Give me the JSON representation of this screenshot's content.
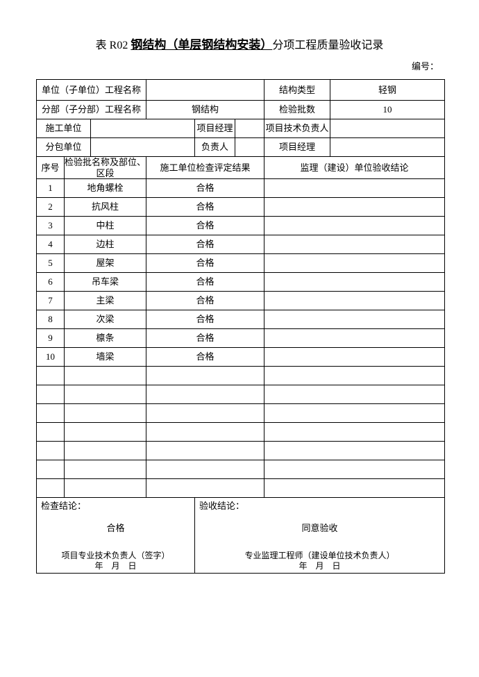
{
  "title": {
    "prefix": "表 R02 ",
    "bold": "钢结构（单层钢结构安装）",
    "suffix": "分项工程质量验收记录"
  },
  "serial_label": "编号：",
  "header": {
    "unit_name_label": "单位（子单位）工程名称",
    "unit_name_value": "",
    "struct_type_label": "结构类型",
    "struct_type_value": "轻钢",
    "sub_name_label": "分部（子分部）工程名称",
    "sub_name_value": "钢结构",
    "batch_count_label": "检验批数",
    "batch_count_value": "10",
    "construct_unit_label": "施工单位",
    "construct_unit_value": "",
    "pm_label": "项目经理",
    "pm_value": "",
    "tech_lead_label": "项目技术负责人",
    "tech_lead_value": "",
    "subcon_label": "分包单位",
    "subcon_value": "",
    "resp_label": "负责人",
    "resp_value": "",
    "sub_pm_label": "项目经理",
    "sub_pm_value": ""
  },
  "columns": {
    "seq": "序号",
    "name": "检验批名称及部位、区段",
    "result": "施工单位检查评定结果",
    "conclusion": "监理（建设）单位验收结论"
  },
  "rows": [
    {
      "seq": "1",
      "name": "地角螺栓",
      "result": "合格",
      "conclusion": ""
    },
    {
      "seq": "2",
      "name": "抗风柱",
      "result": "合格",
      "conclusion": ""
    },
    {
      "seq": "3",
      "name": "中柱",
      "result": "合格",
      "conclusion": ""
    },
    {
      "seq": "4",
      "name": "边柱",
      "result": "合格",
      "conclusion": ""
    },
    {
      "seq": "5",
      "name": "屋架",
      "result": "合格",
      "conclusion": ""
    },
    {
      "seq": "6",
      "name": "吊车梁",
      "result": "合格",
      "conclusion": ""
    },
    {
      "seq": "7",
      "name": "主梁",
      "result": "合格",
      "conclusion": ""
    },
    {
      "seq": "8",
      "name": "次梁",
      "result": "合格",
      "conclusion": ""
    },
    {
      "seq": "9",
      "name": "檩条",
      "result": "合格",
      "conclusion": ""
    },
    {
      "seq": "10",
      "name": "墙梁",
      "result": "合格",
      "conclusion": ""
    },
    {
      "seq": "",
      "name": "",
      "result": "",
      "conclusion": ""
    },
    {
      "seq": "",
      "name": "",
      "result": "",
      "conclusion": ""
    },
    {
      "seq": "",
      "name": "",
      "result": "",
      "conclusion": ""
    },
    {
      "seq": "",
      "name": "",
      "result": "",
      "conclusion": ""
    },
    {
      "seq": "",
      "name": "",
      "result": "",
      "conclusion": ""
    },
    {
      "seq": "",
      "name": "",
      "result": "",
      "conclusion": ""
    },
    {
      "seq": "",
      "name": "",
      "result": "",
      "conclusion": ""
    }
  ],
  "footer": {
    "left_label": "检查结论：",
    "left_value": "合格",
    "left_sign": "项目专业技术负责人（签字）",
    "right_label": "验收结论：",
    "right_value": "同意验收",
    "right_sign": "专业监理工程师（建设单位技术负责人）",
    "date": "年　月　日"
  }
}
